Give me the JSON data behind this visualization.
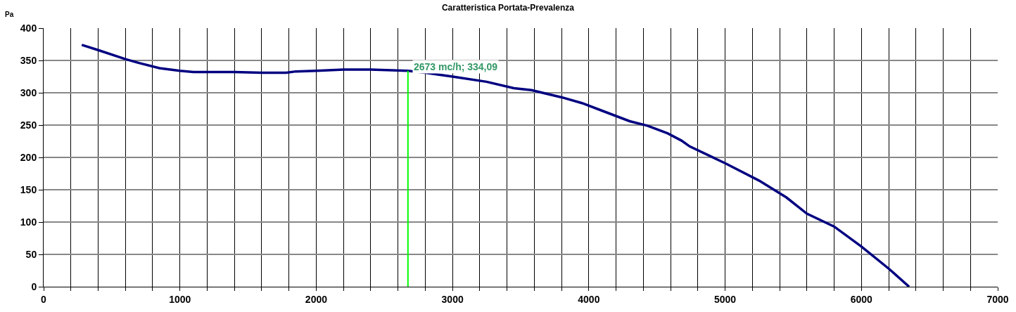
{
  "chart_data": {
    "type": "line",
    "title": "Caratteristica Portata-Prevalenza",
    "ylabel": "Pa",
    "annotations": [
      {
        "text": "2673 mc/h; 334,09",
        "x": 2673,
        "y": 334.09
      }
    ],
    "series": [
      {
        "color": "#000080",
        "x": [
          280,
          400,
          600,
          700,
          850,
          1000,
          1100,
          1400,
          1600,
          1780,
          1850,
          2000,
          2200,
          2400,
          2673,
          2800,
          3000,
          3250,
          3450,
          3580,
          3800,
          3950,
          4100,
          4300,
          4430,
          4580,
          4680,
          4740,
          5000,
          5250,
          5450,
          5600,
          5800,
          6000,
          6200,
          6350
        ],
        "values": [
          374,
          366,
          352,
          346,
          338,
          334,
          332,
          332,
          331,
          331,
          333,
          334,
          336,
          336,
          334,
          331,
          325,
          317,
          307,
          304,
          293,
          284,
          272,
          256,
          249,
          237,
          226,
          217,
          191,
          164,
          138,
          113,
          93,
          62,
          28,
          0
        ]
      },
      {
        "color": "#00ff00",
        "x": [
          2673,
          2673
        ],
        "values": [
          0,
          334.09
        ]
      }
    ],
    "xlim": [
      0,
      7000
    ],
    "xticks": [
      0,
      {
        "value": 200,
        "label": null
      },
      {
        "value": 400,
        "label": null
      },
      {
        "value": 600,
        "label": null
      },
      {
        "value": 800,
        "label": null
      },
      1000,
      {
        "value": 1200,
        "label": null
      },
      {
        "value": 1400,
        "label": null
      },
      {
        "value": 1600,
        "label": null
      },
      {
        "value": 1800,
        "label": null
      },
      2000,
      {
        "value": 2200,
        "label": null
      },
      {
        "value": 2400,
        "label": null
      },
      {
        "value": 2600,
        "label": null
      },
      {
        "value": 2800,
        "label": null
      },
      3000,
      {
        "value": 3200,
        "label": null
      },
      {
        "value": 3400,
        "label": null
      },
      {
        "value": 3600,
        "label": null
      },
      {
        "value": 3800,
        "label": null
      },
      4000,
      {
        "value": 4200,
        "label": null
      },
      {
        "value": 4400,
        "label": null
      },
      {
        "value": 4600,
        "label": null
      },
      {
        "value": 4800,
        "label": null
      },
      5000,
      {
        "value": 5200,
        "label": null
      },
      {
        "value": 5400,
        "label": null
      },
      {
        "value": 5600,
        "label": null
      },
      {
        "value": 5800,
        "label": null
      },
      6000,
      {
        "value": 6200,
        "label": null
      },
      {
        "value": 6400,
        "label": null
      },
      {
        "value": 6600,
        "label": null
      },
      {
        "value": 6800,
        "label": null
      },
      7000
    ],
    "ylim": [
      0,
      400
    ],
    "yticks": [
      0,
      50,
      100,
      150,
      200,
      250,
      300,
      350,
      400
    ],
    "grid": true,
    "marker": "none",
    "line_style": "solid"
  }
}
